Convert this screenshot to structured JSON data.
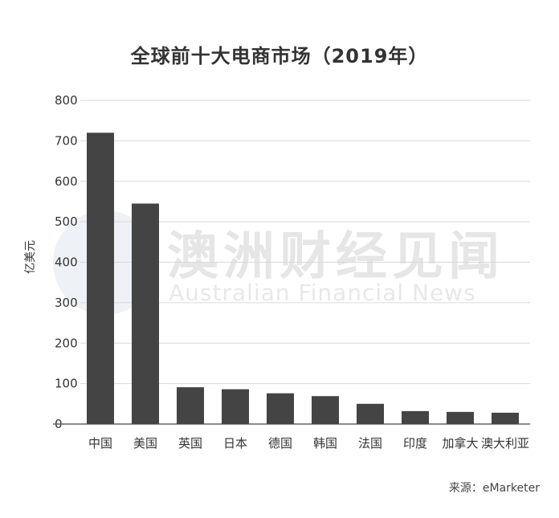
{
  "title": "全球前十大电商市场（2019年）",
  "watermark": {
    "cn": "澳洲财经见闻",
    "en": "Australian Financial News"
  },
  "source": "来源：eMarketer",
  "chart_data": {
    "type": "bar",
    "title": "全球前十大电商市场（2019年）",
    "ylabel": "亿美元",
    "xlabel": "",
    "ylim": [
      0,
      800
    ],
    "yticks": [
      0,
      100,
      200,
      300,
      400,
      500,
      600,
      700,
      800
    ],
    "grid": true,
    "bar_color": "#444444",
    "categories": [
      "中国",
      "美国",
      "英国",
      "日本",
      "德国",
      "韩国",
      "法国",
      "印度",
      "加拿大",
      "澳大利亚"
    ],
    "values": [
      720,
      545,
      91,
      86,
      76,
      69,
      50,
      32,
      30,
      28
    ]
  }
}
